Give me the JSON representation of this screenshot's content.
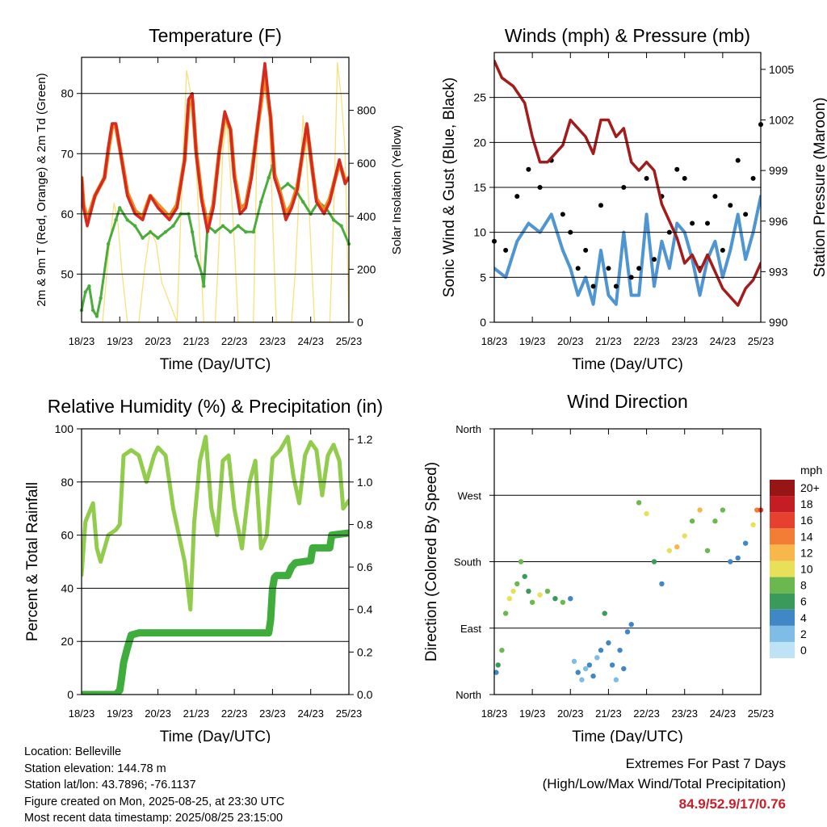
{
  "colors": {
    "temp_2m": "#d42a1f",
    "temp_9m": "#f08a1e",
    "dewpoint": "#4aac3c",
    "solar": "#f9e07a",
    "sonic_wind": "#4f95d2",
    "gust": "#000000",
    "pressure": "#a21c1c",
    "humidity": "#92cc4d",
    "rainfall": "#3fad3c",
    "extremes_values": "#c8202a"
  },
  "chart_data": [
    {
      "type": "line",
      "title": "Temperature (F)",
      "xlabel": "Time (Day/UTC)",
      "ylabel": "2m & 9m T (Red, Orange) & 2m Td (Green)",
      "y2label": "Solar Insolation (Yellow)",
      "x_ticks": [
        "18/23",
        "19/23",
        "20/23",
        "21/23",
        "22/23",
        "23/23",
        "24/23",
        "25/23"
      ],
      "ylim": [
        42,
        86
      ],
      "y_ticks": [
        50,
        60,
        70,
        80
      ],
      "y2lim": [
        0,
        1000
      ],
      "y2_ticks": [
        0,
        200,
        400,
        600,
        800
      ],
      "grid": "horizontal",
      "series": [
        {
          "key": "temp_2m",
          "axis": "left",
          "x": [
            0,
            0.05,
            0.15,
            0.35,
            0.6,
            0.7,
            0.8,
            0.9,
            1.0,
            1.2,
            1.4,
            1.6,
            1.8,
            2.0,
            2.15,
            2.3,
            2.5,
            2.7,
            2.8,
            2.9,
            3.0,
            3.15,
            3.3,
            3.45,
            3.6,
            3.75,
            3.9,
            4.0,
            4.15,
            4.3,
            4.45,
            4.6,
            4.8,
            4.95,
            5.05,
            5.2,
            5.35,
            5.5,
            5.65,
            5.8,
            5.9,
            6.05,
            6.15,
            6.35,
            6.5,
            6.75,
            6.9,
            7.0
          ],
          "y": [
            66,
            61,
            58,
            63,
            66,
            71,
            75,
            75,
            71,
            63,
            60,
            59,
            63,
            61,
            60,
            59,
            61,
            69,
            79,
            80,
            70,
            62,
            57,
            61,
            70,
            77,
            74,
            66,
            60,
            61,
            66,
            74,
            85,
            76,
            66,
            63,
            59,
            61,
            64,
            71,
            75,
            67,
            62,
            60,
            62,
            69,
            65,
            66
          ]
        },
        {
          "key": "temp_9m",
          "axis": "left",
          "x": [
            0,
            0.05,
            0.15,
            0.35,
            0.6,
            0.7,
            0.8,
            0.9,
            1.0,
            1.2,
            1.4,
            1.6,
            1.8,
            2.0,
            2.15,
            2.3,
            2.5,
            2.7,
            2.8,
            2.9,
            3.0,
            3.15,
            3.3,
            3.45,
            3.6,
            3.75,
            3.9,
            4.0,
            4.15,
            4.3,
            4.45,
            4.6,
            4.8,
            4.95,
            5.05,
            5.2,
            5.35,
            5.5,
            5.65,
            5.8,
            5.9,
            6.05,
            6.15,
            6.35,
            6.5,
            6.75,
            6.9,
            7.0
          ],
          "y": [
            66,
            61.5,
            59,
            63,
            66,
            70.5,
            74.5,
            74.5,
            71,
            63.5,
            60.5,
            59.5,
            63,
            61.5,
            60.5,
            59.5,
            61.5,
            69,
            78,
            79,
            70.5,
            62.5,
            58,
            61.5,
            70,
            76.5,
            74,
            66.5,
            61,
            61.5,
            66.5,
            74,
            83,
            76,
            66.5,
            63.5,
            60,
            61.5,
            64.5,
            70.5,
            74.5,
            67,
            62.5,
            60.5,
            62.5,
            68.5,
            65.5,
            66
          ]
        },
        {
          "key": "dewpoint",
          "axis": "left",
          "x": [
            0,
            0.1,
            0.2,
            0.3,
            0.4,
            0.5,
            0.7,
            0.9,
            1.0,
            1.2,
            1.4,
            1.6,
            1.8,
            2.0,
            2.2,
            2.4,
            2.6,
            2.8,
            2.9,
            3.0,
            3.15,
            3.2,
            3.3,
            3.5,
            3.7,
            3.9,
            4.1,
            4.3,
            4.5,
            4.7,
            4.9,
            5.0,
            5.2,
            5.4,
            5.6,
            5.8,
            6.0,
            6.2,
            6.4,
            6.6,
            6.8,
            7.0
          ],
          "y": [
            44,
            47,
            48,
            44,
            43,
            46,
            55,
            59,
            61,
            59,
            58,
            56,
            57,
            56,
            57,
            58,
            60,
            60,
            57,
            53,
            50,
            48,
            58,
            57,
            58,
            57,
            58,
            57,
            57,
            62,
            66,
            68,
            64,
            65,
            64,
            62,
            60,
            62,
            61,
            59,
            58,
            55
          ]
        },
        {
          "key": "solar",
          "axis": "right",
          "x": [
            0,
            0.55,
            0.7,
            0.85,
            0.95,
            1.05,
            1.2,
            1.5,
            1.65,
            1.8,
            1.95,
            2.1,
            2.5,
            2.65,
            2.75,
            2.85,
            2.95,
            3.05,
            3.2,
            3.5,
            3.6,
            3.7,
            3.8,
            3.9,
            4.0,
            4.1,
            4.5,
            4.6,
            4.7,
            4.8,
            4.9,
            5.0,
            5.1,
            5.5,
            5.6,
            5.7,
            5.8,
            5.9,
            6.0,
            6.1,
            6.5,
            6.6,
            6.7,
            6.8,
            6.9,
            7.0
          ],
          "y": [
            0,
            0,
            250,
            450,
            380,
            200,
            0,
            0,
            200,
            350,
            300,
            150,
            0,
            600,
            950,
            870,
            750,
            450,
            0,
            0,
            300,
            650,
            760,
            550,
            300,
            0,
            0,
            700,
            900,
            950,
            840,
            400,
            0,
            0,
            200,
            500,
            780,
            600,
            300,
            0,
            0,
            400,
            980,
            850,
            650,
            0
          ]
        }
      ]
    },
    {
      "type": "scatter",
      "title": "Winds (mph) & Pressure (mb)",
      "xlabel": "Time (Day/UTC)",
      "ylabel": "Sonic Wind & Gust (Blue, Black)",
      "y2label": "Station Pressure (Maroon)",
      "x_ticks": [
        "18/23",
        "19/23",
        "20/23",
        "21/23",
        "22/23",
        "23/23",
        "24/23",
        "25/23"
      ],
      "ylim": [
        0,
        30
      ],
      "y_ticks": [
        0,
        5,
        10,
        15,
        20,
        25
      ],
      "y2lim": [
        990,
        1006
      ],
      "y2_ticks": [
        990,
        993,
        996,
        999,
        1002,
        1005
      ],
      "grid": "horizontal",
      "series": [
        {
          "key": "sonic_wind",
          "axis": "left",
          "x": [
            0,
            0.3,
            0.6,
            0.9,
            1.2,
            1.5,
            1.8,
            2.0,
            2.2,
            2.4,
            2.6,
            2.8,
            3.0,
            3.2,
            3.4,
            3.6,
            3.8,
            4.0,
            4.2,
            4.4,
            4.6,
            4.8,
            5.0,
            5.2,
            5.4,
            5.6,
            5.8,
            6.0,
            6.2,
            6.4,
            6.6,
            6.8,
            7.0
          ],
          "y": [
            6,
            5,
            9,
            11,
            10,
            12,
            8,
            6,
            3,
            5,
            2,
            8,
            3,
            2,
            10,
            3,
            3,
            12,
            4,
            9,
            6,
            11,
            10,
            7,
            3,
            7,
            9,
            5,
            8,
            12,
            7,
            10,
            14
          ]
        },
        {
          "key": "gust",
          "axis": "left",
          "x": [
            0,
            0.3,
            0.6,
            0.9,
            1.2,
            1.5,
            1.8,
            2.0,
            2.2,
            2.4,
            2.6,
            2.8,
            3.0,
            3.2,
            3.4,
            3.6,
            3.8,
            4.0,
            4.2,
            4.4,
            4.6,
            4.8,
            5.0,
            5.2,
            5.4,
            5.6,
            5.8,
            6.0,
            6.2,
            6.4,
            6.6,
            6.8,
            7.0
          ],
          "y": [
            9,
            8,
            14,
            17,
            15,
            18,
            12,
            10,
            6,
            8,
            4,
            13,
            6,
            4,
            15,
            5,
            6,
            16,
            7,
            14,
            10,
            17,
            16,
            11,
            6,
            11,
            14,
            8,
            13,
            18,
            12,
            16,
            22
          ]
        },
        {
          "key": "pressure",
          "axis": "right",
          "x": [
            0,
            0.2,
            0.5,
            0.8,
            1.0,
            1.2,
            1.4,
            1.6,
            1.8,
            2.0,
            2.2,
            2.4,
            2.6,
            2.8,
            3.0,
            3.2,
            3.4,
            3.6,
            3.8,
            4.0,
            4.2,
            4.4,
            4.6,
            4.8,
            5.0,
            5.2,
            5.4,
            5.6,
            5.8,
            6.0,
            6.2,
            6.4,
            6.6,
            6.8,
            7.0
          ],
          "y": [
            1005.5,
            1004.5,
            1004,
            1003,
            1001,
            999.5,
            999.5,
            1000,
            1000.5,
            1002,
            1001.5,
            1001,
            1000,
            1002,
            1002,
            1001,
            1001.5,
            999.5,
            999,
            999.5,
            999,
            997,
            996,
            995,
            993.5,
            994,
            993,
            994,
            993,
            992,
            991.5,
            991,
            992,
            992.5,
            993.5
          ]
        }
      ]
    },
    {
      "type": "line",
      "title": "Relative Humidity (%) & Precipitation (in)",
      "xlabel": "Time (Day/UTC)",
      "ylabel": "Percent & Total Rainfall",
      "x_ticks": [
        "18/23",
        "19/23",
        "20/23",
        "21/23",
        "22/23",
        "23/23",
        "24/23",
        "25/23"
      ],
      "ylim": [
        0,
        100
      ],
      "y_ticks": [
        0,
        20,
        40,
        60,
        80,
        100
      ],
      "y2lim": [
        0,
        1.25
      ],
      "y2_ticks": [
        "0.0",
        "0.2",
        "0.4",
        "0.6",
        "0.8",
        "1.0",
        "1.2"
      ],
      "grid": "horizontal",
      "series": [
        {
          "key": "humidity",
          "axis": "left",
          "x": [
            0,
            0.1,
            0.3,
            0.4,
            0.5,
            0.6,
            0.7,
            0.9,
            1.0,
            1.1,
            1.3,
            1.5,
            1.7,
            1.9,
            2.0,
            2.2,
            2.4,
            2.55,
            2.7,
            2.85,
            2.95,
            3.1,
            3.25,
            3.4,
            3.55,
            3.7,
            3.85,
            4.0,
            4.2,
            4.4,
            4.55,
            4.7,
            4.85,
            5.0,
            5.2,
            5.4,
            5.55,
            5.7,
            5.85,
            6.0,
            6.15,
            6.3,
            6.45,
            6.6,
            6.75,
            6.85,
            7.0
          ],
          "y": [
            45,
            65,
            72,
            55,
            50,
            55,
            60,
            62,
            64,
            90,
            92,
            90,
            80,
            90,
            93,
            90,
            70,
            60,
            50,
            32,
            65,
            88,
            97,
            70,
            60,
            88,
            90,
            70,
            55,
            80,
            88,
            55,
            60,
            89,
            92,
            97,
            82,
            72,
            90,
            95,
            92,
            75,
            90,
            94,
            88,
            70,
            73
          ]
        },
        {
          "key": "rainfall",
          "axis": "right",
          "x": [
            0,
            0.9,
            1.0,
            1.05,
            1.1,
            1.2,
            1.3,
            1.5,
            3.0,
            4.5,
            4.9,
            4.95,
            5.0,
            5.05,
            5.1,
            5.4,
            5.5,
            5.6,
            6.0,
            6.05,
            6.5,
            6.55,
            7.0
          ],
          "y": [
            0,
            0,
            0.02,
            0.08,
            0.15,
            0.22,
            0.28,
            0.29,
            0.29,
            0.29,
            0.29,
            0.35,
            0.5,
            0.55,
            0.56,
            0.56,
            0.6,
            0.62,
            0.63,
            0.69,
            0.69,
            0.75,
            0.76
          ]
        }
      ]
    },
    {
      "type": "scatter",
      "title": "Wind Direction",
      "xlabel": "Time (Day/UTC)",
      "ylabel": "Direction (Colored By Speed)",
      "x_ticks": [
        "18/23",
        "19/23",
        "20/23",
        "21/23",
        "22/23",
        "23/23",
        "24/23",
        "25/23"
      ],
      "y_ticks": [
        "North",
        "East",
        "South",
        "West",
        "North"
      ],
      "ylim": [
        0,
        360
      ],
      "grid": "horizontal",
      "colorbar": {
        "title": "mph",
        "labels": [
          "0",
          "2",
          "4",
          "6",
          "8",
          "10",
          "12",
          "14",
          "16",
          "18",
          "20+"
        ],
        "colors": [
          "#bfe3f6",
          "#7fbce6",
          "#3f87c5",
          "#3a9a5c",
          "#6ab84e",
          "#e8e05a",
          "#f8b74a",
          "#f47d36",
          "#e6412f",
          "#c41e24",
          "#981515"
        ]
      },
      "series": [
        {
          "key": "direction",
          "x": [
            0.05,
            0.1,
            0.2,
            0.3,
            0.4,
            0.5,
            0.6,
            0.7,
            0.8,
            0.9,
            1.0,
            1.2,
            1.4,
            1.6,
            1.8,
            2.0,
            2.1,
            2.2,
            2.3,
            2.4,
            2.5,
            2.6,
            2.7,
            2.8,
            2.9,
            3.0,
            3.1,
            3.2,
            3.3,
            3.4,
            3.5,
            3.6,
            3.8,
            4.0,
            4.2,
            4.4,
            4.6,
            4.8,
            5.0,
            5.2,
            5.4,
            5.6,
            5.8,
            6.0,
            6.2,
            6.4,
            6.6,
            6.8,
            6.9,
            7.0
          ],
          "y": [
            30,
            40,
            60,
            110,
            130,
            140,
            150,
            180,
            160,
            140,
            125,
            135,
            140,
            130,
            125,
            130,
            45,
            30,
            20,
            35,
            40,
            25,
            50,
            60,
            110,
            70,
            40,
            20,
            60,
            35,
            85,
            95,
            260,
            245,
            180,
            150,
            195,
            200,
            215,
            235,
            250,
            195,
            235,
            250,
            180,
            185,
            205,
            230,
            250,
            250
          ],
          "speed": [
            4,
            6,
            7,
            8,
            9,
            10,
            8,
            8,
            6,
            6,
            8,
            10,
            8,
            6,
            8,
            4,
            2,
            3,
            2,
            2,
            3,
            4,
            2,
            4,
            6,
            4,
            3,
            2,
            4,
            3,
            4,
            4,
            8,
            10,
            6,
            4,
            10,
            12,
            10,
            8,
            12,
            8,
            8,
            8,
            4,
            4,
            4,
            10,
            14,
            16
          ]
        }
      ]
    }
  ],
  "info": {
    "location": "Location: Belleville",
    "elevation": "Station elevation: 144.78 m",
    "latlon": "Station lat/lon: 43.7896; -76.1137",
    "created": "Figure created on Mon, 2025-08-25, at 23:30 UTC",
    "recent": "Most recent data timestamp: 2025/08/25 23:15:00"
  },
  "extremes": {
    "heading": "Extremes For Past 7 Days",
    "sub": "(High/Low/Max Wind/Total Precipitation)",
    "values": "84.9/52.9/17/0.76"
  }
}
